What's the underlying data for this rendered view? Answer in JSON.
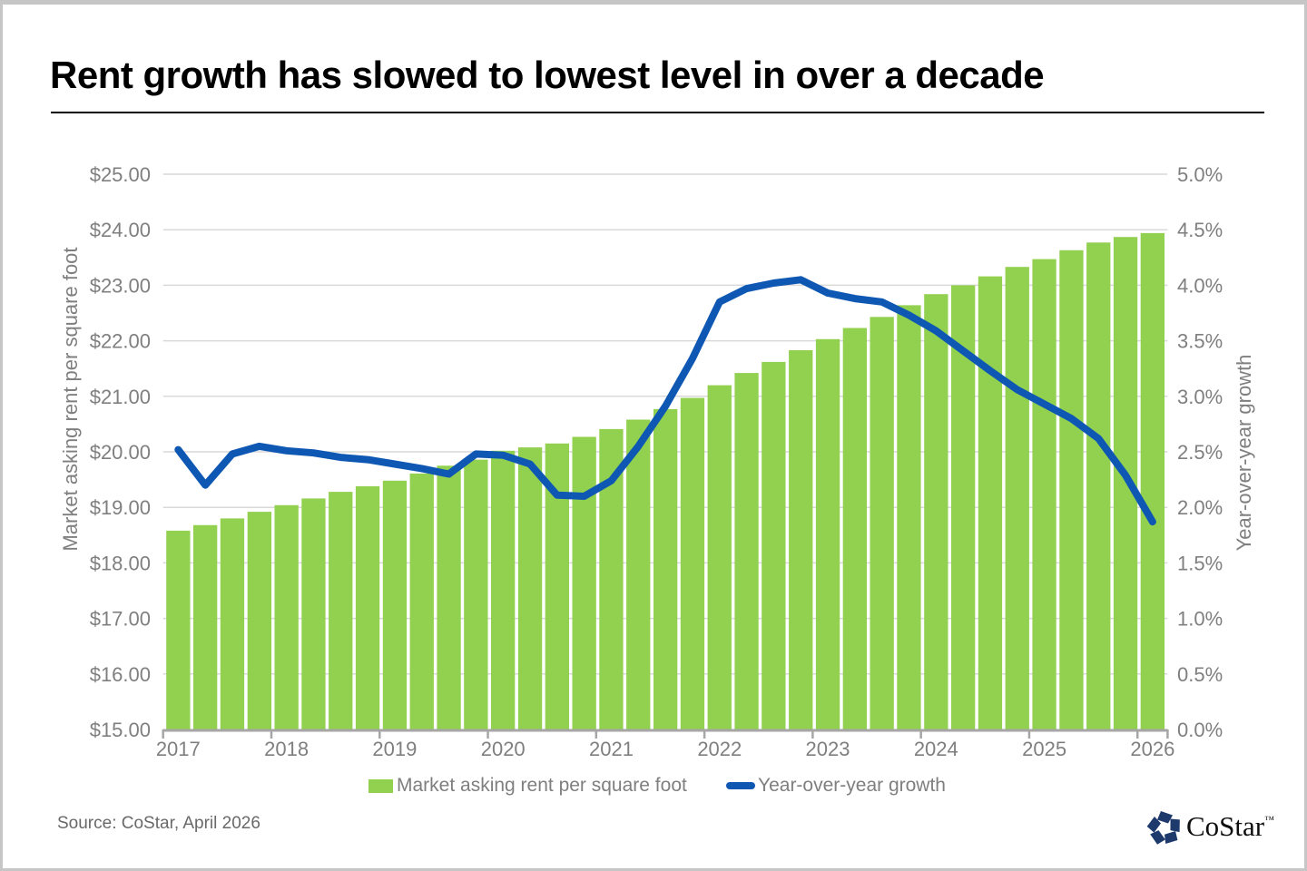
{
  "page": {
    "title": "Rent growth has slowed to lowest level in over a decade",
    "source": "Source: CoStar, April 2026",
    "logo_text": "CoStar",
    "logo_tm": "™"
  },
  "chart_data": {
    "type": "combo",
    "x_categories": [
      "2017 Q1",
      "2017 Q2",
      "2017 Q3",
      "2017 Q4",
      "2018 Q1",
      "2018 Q2",
      "2018 Q3",
      "2018 Q4",
      "2019 Q1",
      "2019 Q2",
      "2019 Q3",
      "2019 Q4",
      "2020 Q1",
      "2020 Q2",
      "2020 Q3",
      "2020 Q4",
      "2021 Q1",
      "2021 Q2",
      "2021 Q3",
      "2021 Q4",
      "2022 Q1",
      "2022 Q2",
      "2022 Q3",
      "2022 Q4",
      "2023 Q1",
      "2023 Q2",
      "2023 Q3",
      "2023 Q4",
      "2024 Q1",
      "2024 Q2",
      "2024 Q3",
      "2024 Q4",
      "2025 Q1",
      "2025 Q2",
      "2025 Q3",
      "2025 Q4",
      "2026 Q1"
    ],
    "x_axis_year_labels": [
      "2017",
      "2018",
      "2019",
      "2020",
      "2021",
      "2022",
      "2023",
      "2024",
      "2025",
      "2026"
    ],
    "series": [
      {
        "name": "Market asking rent per square foot",
        "type": "bar",
        "axis": "left",
        "color": "#92d050",
        "values": [
          18.58,
          18.68,
          18.8,
          18.92,
          19.04,
          19.16,
          19.28,
          19.38,
          19.48,
          19.61,
          19.75,
          19.86,
          20.02,
          20.08,
          20.15,
          20.27,
          20.41,
          20.58,
          20.77,
          20.97,
          21.2,
          21.42,
          21.62,
          21.83,
          22.03,
          22.23,
          22.43,
          22.64,
          22.84,
          23.0,
          23.16,
          23.33,
          23.47,
          23.63,
          23.77,
          23.87,
          23.94
        ]
      },
      {
        "name": "Year-over-year growth",
        "type": "line",
        "axis": "right",
        "color": "#0e58b4",
        "values": [
          2.52,
          2.2,
          2.48,
          2.55,
          2.51,
          2.49,
          2.45,
          2.43,
          2.39,
          2.35,
          2.3,
          2.48,
          2.47,
          2.39,
          2.11,
          2.1,
          2.24,
          2.55,
          2.91,
          3.34,
          3.85,
          3.97,
          4.02,
          4.05,
          3.93,
          3.88,
          3.85,
          3.73,
          3.59,
          3.41,
          3.23,
          3.06,
          2.93,
          2.8,
          2.62,
          2.29,
          1.87
        ]
      }
    ],
    "left_axis": {
      "title": "Market asking rent per square foot",
      "min": 15,
      "max": 25,
      "step": 1,
      "tick_labels": [
        "$15.00",
        "$16.00",
        "$17.00",
        "$18.00",
        "$19.00",
        "$20.00",
        "$21.00",
        "$22.00",
        "$23.00",
        "$24.00",
        "$25.00"
      ]
    },
    "right_axis": {
      "title": "Year-over-year growth",
      "min": 0,
      "max": 5,
      "step": 0.5,
      "tick_labels": [
        "0.0%",
        "0.5%",
        "1.0%",
        "1.5%",
        "2.0%",
        "2.5%",
        "3.0%",
        "3.5%",
        "4.0%",
        "4.5%",
        "5.0%"
      ]
    },
    "legend": [
      "Market asking rent per square foot",
      "Year-over-year growth"
    ],
    "grid": true,
    "colors": {
      "gridline": "#d9d9d9",
      "axis_line": "#a6a6a6",
      "tick_label": "#7f7f7f"
    }
  }
}
